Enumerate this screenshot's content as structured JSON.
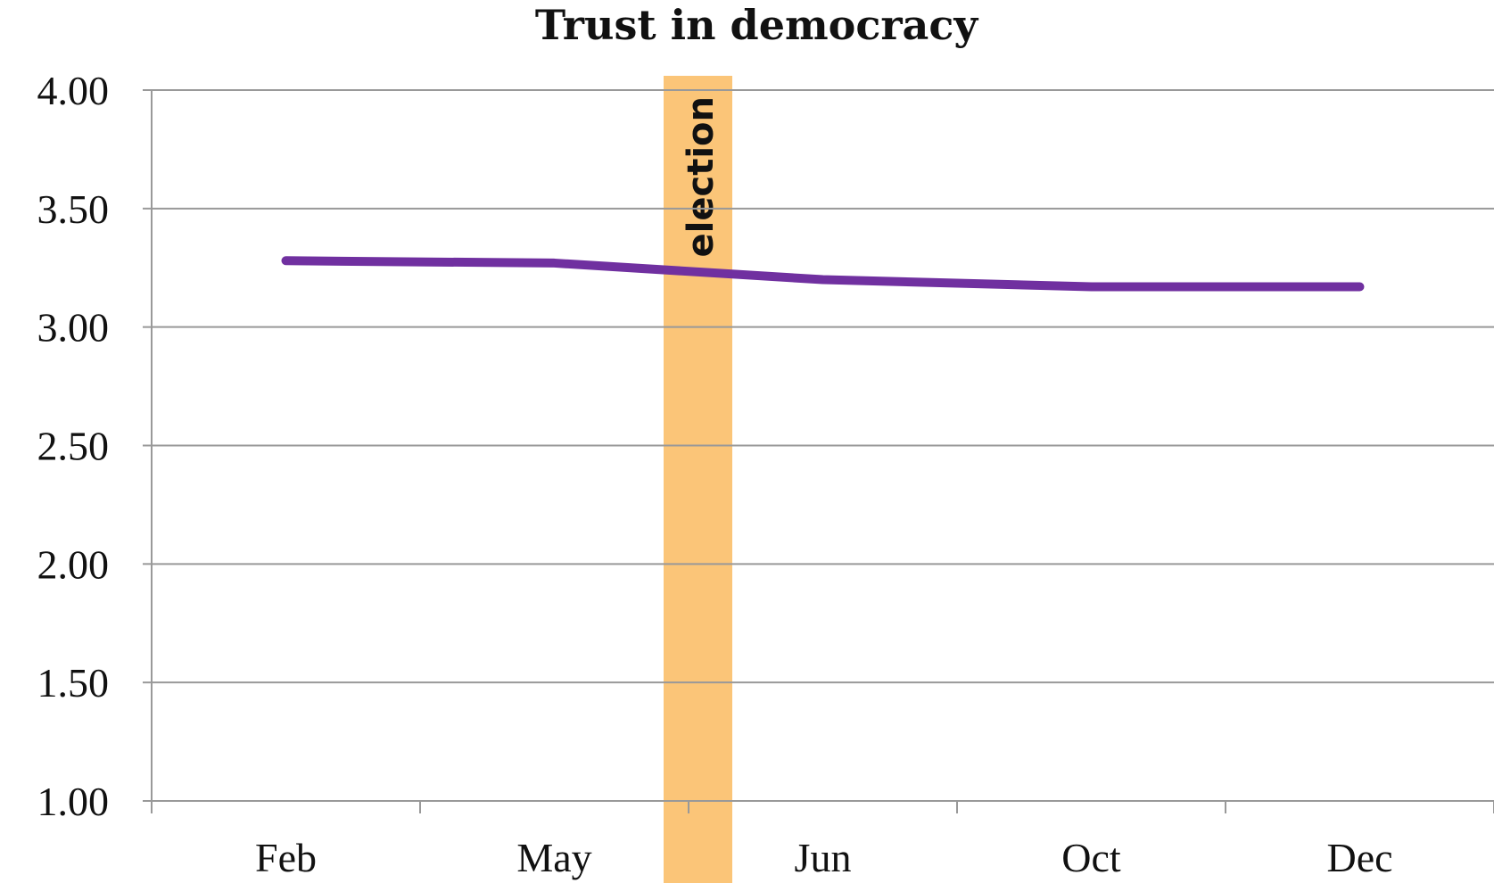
{
  "chart_data": {
    "type": "line",
    "title": "Trust in democracy",
    "xlabel": "",
    "ylabel": "",
    "categories": [
      "Feb",
      "May",
      "Jun",
      "Oct",
      "Dec"
    ],
    "series": [
      {
        "values": [
          3.28,
          3.27,
          3.2,
          3.17,
          3.17
        ],
        "color": "#7030a0"
      }
    ],
    "ylim": [
      1.0,
      4.0
    ],
    "yticks": [
      "1.00",
      "1.50",
      "2.00",
      "2.50",
      "3.00",
      "3.50",
      "4.00"
    ],
    "grid": true,
    "annotations": [
      {
        "label": "election",
        "between": [
          "May",
          "Jun"
        ],
        "color": "#fbc578"
      }
    ]
  }
}
